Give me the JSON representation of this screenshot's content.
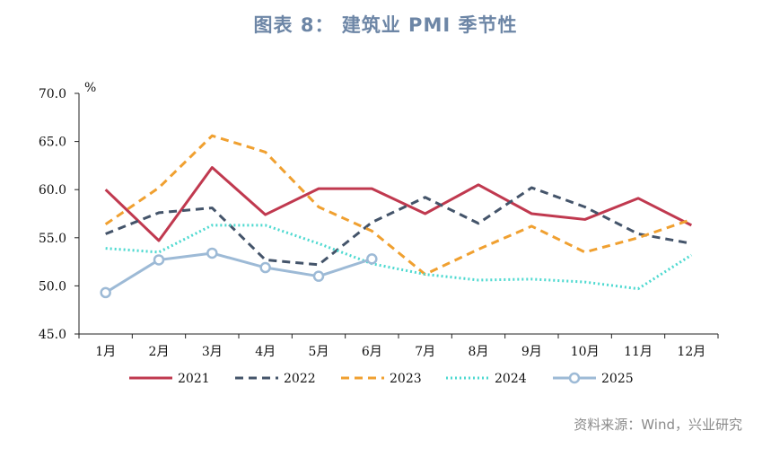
{
  "title": "图表 8： 建筑业 PMI 季节性",
  "source": "资料来源：Wind，兴业研究",
  "chart_data": {
    "type": "line",
    "title": "图表 8： 建筑业 PMI 季节性",
    "ylabel": "%",
    "xlabel": "",
    "ylim": [
      45.0,
      70.0
    ],
    "yticks": [
      "70.0",
      "65.0",
      "60.0",
      "55.0",
      "50.0",
      "45.0"
    ],
    "categories": [
      "1月",
      "2月",
      "3月",
      "4月",
      "5月",
      "6月",
      "7月",
      "8月",
      "9月",
      "10月",
      "11月",
      "12月"
    ],
    "legend_position": "bottom",
    "series": [
      {
        "name": "2021",
        "color": "#c0394f",
        "style": "solid",
        "values": [
          60.0,
          54.7,
          62.3,
          57.4,
          60.1,
          60.1,
          57.5,
          60.5,
          57.5,
          56.9,
          59.1,
          56.3
        ]
      },
      {
        "name": "2022",
        "color": "#44546a",
        "style": "dashed",
        "values": [
          55.4,
          57.6,
          58.1,
          52.7,
          52.2,
          56.6,
          59.2,
          56.5,
          60.2,
          58.2,
          55.4,
          54.4
        ]
      },
      {
        "name": "2023",
        "color": "#f0a030",
        "style": "dashed",
        "values": [
          56.4,
          60.2,
          65.6,
          63.9,
          58.2,
          55.7,
          51.2,
          53.8,
          56.2,
          53.5,
          55.0,
          56.9
        ]
      },
      {
        "name": "2024",
        "color": "#4dd9d0",
        "style": "dotted",
        "values": [
          53.9,
          53.5,
          56.3,
          56.3,
          54.4,
          52.3,
          51.2,
          50.6,
          50.7,
          50.4,
          49.7,
          53.2
        ]
      },
      {
        "name": "2025",
        "color": "#9dbad6",
        "style": "solid-marker",
        "values": [
          49.3,
          52.7,
          53.4,
          51.9,
          51.0,
          52.8,
          null,
          null,
          null,
          null,
          null,
          null
        ]
      }
    ]
  }
}
